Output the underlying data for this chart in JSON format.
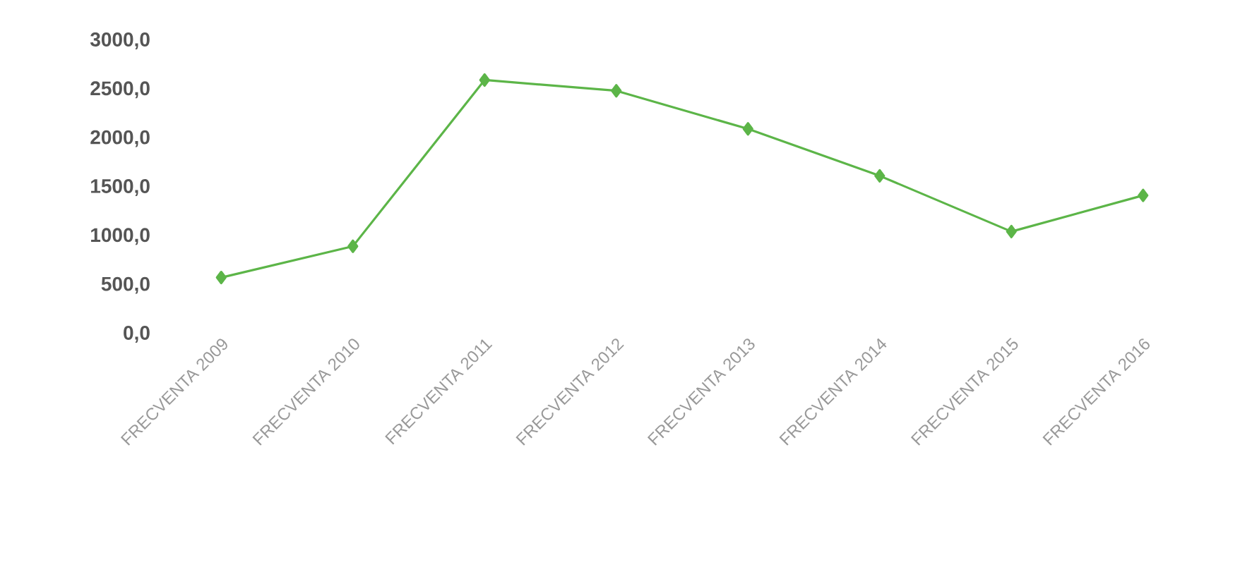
{
  "chart_data": {
    "type": "line",
    "categories": [
      "FRECVENTA 2009",
      "FRECVENTA 2010",
      "FRECVENTA 2011",
      "FRECVENTA 2012",
      "FRECVENTA 2013",
      "FRECVENTA 2014",
      "FRECVENTA 2015",
      "FRECVENTA 2016"
    ],
    "series": [
      {
        "color": "#5cb548",
        "values": [
          580,
          900,
          2600,
          2490,
          2100,
          1620,
          1050,
          1420
        ]
      }
    ],
    "ylim": [
      0,
      3000
    ],
    "yticks": [
      {
        "value": 0,
        "label": "0,0"
      },
      {
        "value": 500,
        "label": "500,0"
      },
      {
        "value": 1000,
        "label": "1000,0"
      },
      {
        "value": 1500,
        "label": "1500,0"
      },
      {
        "value": 2000,
        "label": "2000,0"
      },
      {
        "value": 2500,
        "label": "2500,0"
      },
      {
        "value": 3000,
        "label": "3000,0"
      }
    ],
    "marker": "diamond"
  }
}
